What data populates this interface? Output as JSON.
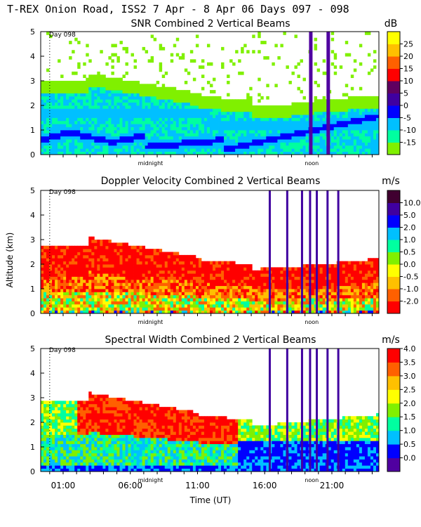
{
  "header": "T-REX Onion Road, ISS2   7 Apr -  8 Apr 06 Days 097 - 098",
  "x_axis": {
    "label": "Time (UT)",
    "ticks": [
      "01:00",
      "06:00",
      "11:00",
      "16:00",
      "21:00"
    ],
    "tick_hours": [
      1,
      6,
      11,
      16,
      21
    ],
    "range_hours": [
      -0.67,
      24.5
    ],
    "midnight_label": "midnight",
    "noon_label": "noon"
  },
  "y_axis": {
    "label": "Altitude (km)",
    "ticks": [
      "0",
      "1",
      "2",
      "3",
      "4",
      "5"
    ],
    "range_km": [
      0,
      5
    ]
  },
  "colors": {
    "snr": [
      "#80f000",
      "#00ffa0",
      "#00c0ff",
      "#0000ff",
      "#4000a0",
      "#600060",
      "#ff0000",
      "#ff6000",
      "#ffc000",
      "#ffff00"
    ],
    "doppler": [
      "#ff0000",
      "#ff6000",
      "#ffc000",
      "#ffff00",
      "#80f000",
      "#00ffa0",
      "#00c0ff",
      "#0000ff",
      "#4000a0",
      "#400030"
    ],
    "width": [
      "#5000a0",
      "#0000ff",
      "#00c0ff",
      "#00ffa0",
      "#80f000",
      "#ffff00",
      "#ffc000",
      "#ff6000",
      "#ff0000"
    ]
  },
  "chart_data": [
    {
      "type": "heatmap",
      "title": "SNR Combined 2 Vertical Beams",
      "units": "dB",
      "day_marker": "Day 098",
      "colorbar_ticks": [
        "-15",
        "-10",
        "-5",
        "0",
        "5",
        "10",
        "15",
        "20",
        "25"
      ],
      "color_levels": [
        -15,
        -10,
        -5,
        0,
        5,
        10,
        15,
        20,
        25
      ],
      "ylim": [
        0,
        5
      ],
      "xlabel": "Time (UT)",
      "ylabel": "Altitude (km)"
    },
    {
      "type": "heatmap",
      "title": "Doppler Velocity Combined 2 Vertical Beams",
      "units": "m/s",
      "day_marker": "Day 098",
      "colorbar_ticks": [
        "-2.0",
        "-1.0",
        "-0.5",
        "0.0",
        "0.5",
        "1.0",
        "2.0",
        "5.0",
        "10.0"
      ],
      "color_levels": [
        -2.0,
        -1.0,
        -0.5,
        0.0,
        0.5,
        1.0,
        2.0,
        5.0,
        10.0
      ],
      "ylim": [
        0,
        5
      ],
      "xlabel": "Time (UT)",
      "ylabel": "Altitude (km)"
    },
    {
      "type": "heatmap",
      "title": "Spectral Width Combined 2 Vertical Beams",
      "units": "m/s",
      "day_marker": "Day 098",
      "colorbar_ticks": [
        "0.0",
        "0.5",
        "1.0",
        "1.5",
        "2.0",
        "2.5",
        "3.0",
        "3.5",
        "4.0"
      ],
      "color_levels": [
        0.0,
        0.5,
        1.0,
        1.5,
        2.0,
        2.5,
        3.0,
        3.5,
        4.0
      ],
      "ylim": [
        0,
        5
      ],
      "xlabel": "Time (UT)",
      "ylabel": "Altitude (km)"
    }
  ]
}
